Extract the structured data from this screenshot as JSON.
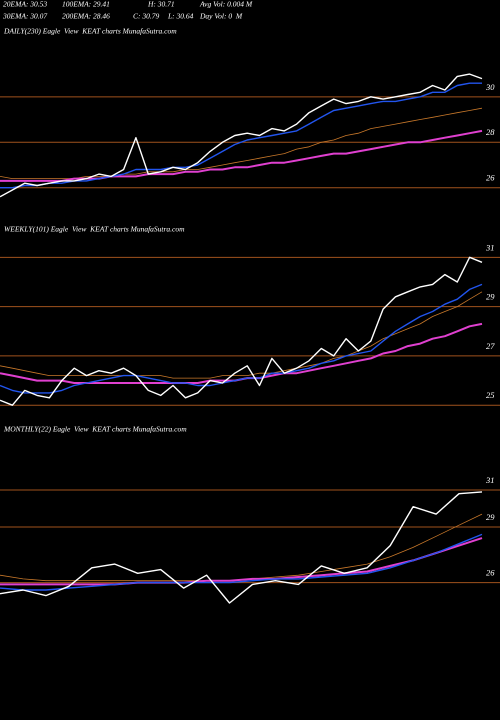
{
  "header": [
    [
      "20EMA: 30.53",
      "100EMA: 29.41",
      "H: 30.71",
      "Avg Vol: 0.004 M"
    ],
    [
      "30EMA: 30.07",
      "200EMA: 28.46",
      "C: 30.79",
      "L: 30.64",
      "Day Vol: 0  M"
    ]
  ],
  "chart_data": [
    {
      "type": "line",
      "title": "DAILY(230) Eagle  View  KEAT charts MunafaSutra.com",
      "ylim": [
        24.8,
        32.5
      ],
      "yticks": [
        30,
        28,
        26
      ],
      "grid": true,
      "grid_color": "#a0521d",
      "series": [
        {
          "color": "#c8782a",
          "values": [
            26.5,
            26.4,
            26.4,
            26.4,
            26.4,
            26.4,
            26.4,
            26.5,
            26.5,
            26.5,
            26.6,
            26.6,
            26.7,
            26.7,
            26.7,
            26.8,
            26.8,
            26.9,
            27.0,
            27.1,
            27.2,
            27.3,
            27.4,
            27.5,
            27.7,
            27.8,
            28.0,
            28.1,
            28.3,
            28.4,
            28.6,
            28.7,
            28.8,
            28.9,
            29.0,
            29.1,
            29.2,
            29.3,
            29.4,
            29.5
          ]
        },
        {
          "color": "#e040d0",
          "values": [
            26.3,
            26.3,
            26.3,
            26.3,
            26.3,
            26.3,
            26.4,
            26.4,
            26.4,
            26.5,
            26.5,
            26.5,
            26.6,
            26.6,
            26.6,
            26.7,
            26.7,
            26.8,
            26.8,
            26.9,
            26.9,
            27.0,
            27.1,
            27.1,
            27.2,
            27.3,
            27.4,
            27.5,
            27.5,
            27.6,
            27.7,
            27.8,
            27.9,
            28.0,
            28.0,
            28.1,
            28.2,
            28.3,
            28.4,
            28.5
          ]
        },
        {
          "color": "#2255ee",
          "values": [
            26.0,
            26.0,
            26.1,
            26.1,
            26.2,
            26.2,
            26.3,
            26.3,
            26.4,
            26.5,
            26.6,
            26.8,
            26.8,
            26.8,
            26.9,
            26.9,
            27.0,
            27.3,
            27.6,
            27.9,
            28.1,
            28.2,
            28.3,
            28.4,
            28.5,
            28.8,
            29.1,
            29.4,
            29.5,
            29.6,
            29.7,
            29.8,
            29.8,
            29.9,
            30.0,
            30.2,
            30.2,
            30.5,
            30.6,
            30.6
          ]
        },
        {
          "color": "#ffffff",
          "values": [
            25.6,
            25.9,
            26.2,
            26.1,
            26.2,
            26.3,
            26.3,
            26.4,
            26.6,
            26.5,
            26.8,
            28.2,
            26.6,
            26.7,
            26.9,
            26.8,
            27.1,
            27.6,
            28.0,
            28.3,
            28.4,
            28.3,
            28.6,
            28.5,
            28.8,
            29.3,
            29.6,
            29.9,
            29.7,
            29.8,
            30.0,
            29.9,
            30.0,
            30.1,
            30.2,
            30.5,
            30.3,
            30.9,
            31.0,
            30.8
          ]
        }
      ]
    },
    {
      "type": "line",
      "title": "WEEKLY(101) Eagle  View  KEAT charts MunafaSutra.com",
      "ylim": [
        24.4,
        31.5
      ],
      "yticks": [
        31,
        29,
        27,
        25
      ],
      "grid": true,
      "grid_color": "#a0521d",
      "series": [
        {
          "color": "#c8782a",
          "values": [
            26.6,
            26.5,
            26.4,
            26.3,
            26.2,
            26.2,
            26.2,
            26.2,
            26.2,
            26.2,
            26.2,
            26.2,
            26.2,
            26.2,
            26.1,
            26.1,
            26.1,
            26.1,
            26.2,
            26.2,
            26.2,
            26.3,
            26.3,
            26.4,
            26.5,
            26.6,
            26.7,
            26.9,
            27.0,
            27.2,
            27.4,
            27.7,
            27.9,
            28.1,
            28.3,
            28.6,
            28.8,
            29.0,
            29.3,
            29.6
          ]
        },
        {
          "color": "#e040d0",
          "values": [
            26.3,
            26.2,
            26.1,
            26.0,
            26.0,
            26.0,
            25.9,
            25.9,
            25.9,
            25.9,
            25.9,
            25.9,
            25.9,
            25.9,
            25.9,
            25.9,
            25.9,
            26.0,
            26.0,
            26.0,
            26.1,
            26.1,
            26.2,
            26.3,
            26.3,
            26.4,
            26.5,
            26.6,
            26.7,
            26.8,
            26.9,
            27.1,
            27.2,
            27.4,
            27.5,
            27.7,
            27.8,
            28.0,
            28.2,
            28.3
          ]
        },
        {
          "color": "#2255ee",
          "values": [
            25.8,
            25.6,
            25.5,
            25.5,
            25.5,
            25.6,
            25.8,
            25.9,
            26.0,
            26.1,
            26.2,
            26.2,
            26.1,
            26.0,
            25.9,
            25.9,
            25.8,
            25.8,
            25.9,
            26.0,
            26.1,
            26.1,
            26.3,
            26.3,
            26.4,
            26.5,
            26.7,
            26.8,
            27.0,
            27.1,
            27.2,
            27.6,
            28.0,
            28.3,
            28.6,
            28.8,
            29.1,
            29.3,
            29.7,
            29.9
          ]
        },
        {
          "color": "#ffffff",
          "values": [
            25.2,
            25.0,
            25.6,
            25.4,
            25.3,
            26.0,
            26.5,
            26.2,
            26.4,
            26.3,
            26.5,
            26.2,
            25.6,
            25.4,
            25.8,
            25.3,
            25.5,
            26.0,
            25.9,
            26.3,
            26.6,
            25.8,
            26.9,
            26.3,
            26.5,
            26.8,
            27.3,
            27.0,
            27.7,
            27.2,
            27.6,
            28.9,
            29.4,
            29.6,
            29.8,
            29.9,
            30.3,
            30.0,
            31.0,
            30.8
          ]
        }
      ]
    },
    {
      "type": "line",
      "title": "MONTHLY(22) Eagle  View  KEAT charts MunafaSutra.com",
      "ylim": [
        22.9,
        33.7
      ],
      "yticks": [
        31,
        29,
        26
      ],
      "grid": true,
      "grid_color": "#a0521d",
      "series": [
        {
          "color": "#c8782a",
          "values": [
            26.4,
            26.2,
            26.1,
            26.1,
            26.1,
            26.1,
            26.1,
            26.1,
            26.1,
            26.1,
            26.1,
            26.2,
            26.3,
            26.4,
            26.6,
            26.8,
            27.0,
            27.4,
            27.9,
            28.5,
            29.1,
            29.7
          ]
        },
        {
          "color": "#e040d0",
          "values": [
            25.9,
            25.9,
            25.9,
            25.9,
            25.9,
            25.9,
            26.0,
            26.0,
            26.0,
            26.1,
            26.1,
            26.2,
            26.2,
            26.3,
            26.4,
            26.5,
            26.6,
            26.9,
            27.2,
            27.6,
            28.0,
            28.4
          ]
        },
        {
          "color": "#2255ee",
          "values": [
            25.7,
            25.6,
            25.6,
            25.7,
            25.8,
            25.9,
            26.0,
            26.0,
            26.0,
            26.0,
            26.0,
            26.1,
            26.2,
            26.2,
            26.3,
            26.4,
            26.5,
            26.8,
            27.2,
            27.6,
            28.1,
            28.6
          ]
        },
        {
          "color": "#ffffff",
          "values": [
            25.4,
            25.6,
            25.3,
            25.8,
            26.8,
            27.0,
            26.5,
            26.7,
            25.7,
            26.4,
            24.9,
            25.9,
            26.1,
            25.9,
            26.9,
            26.5,
            26.8,
            28.0,
            30.1,
            29.7,
            30.8,
            30.9
          ]
        }
      ]
    }
  ]
}
